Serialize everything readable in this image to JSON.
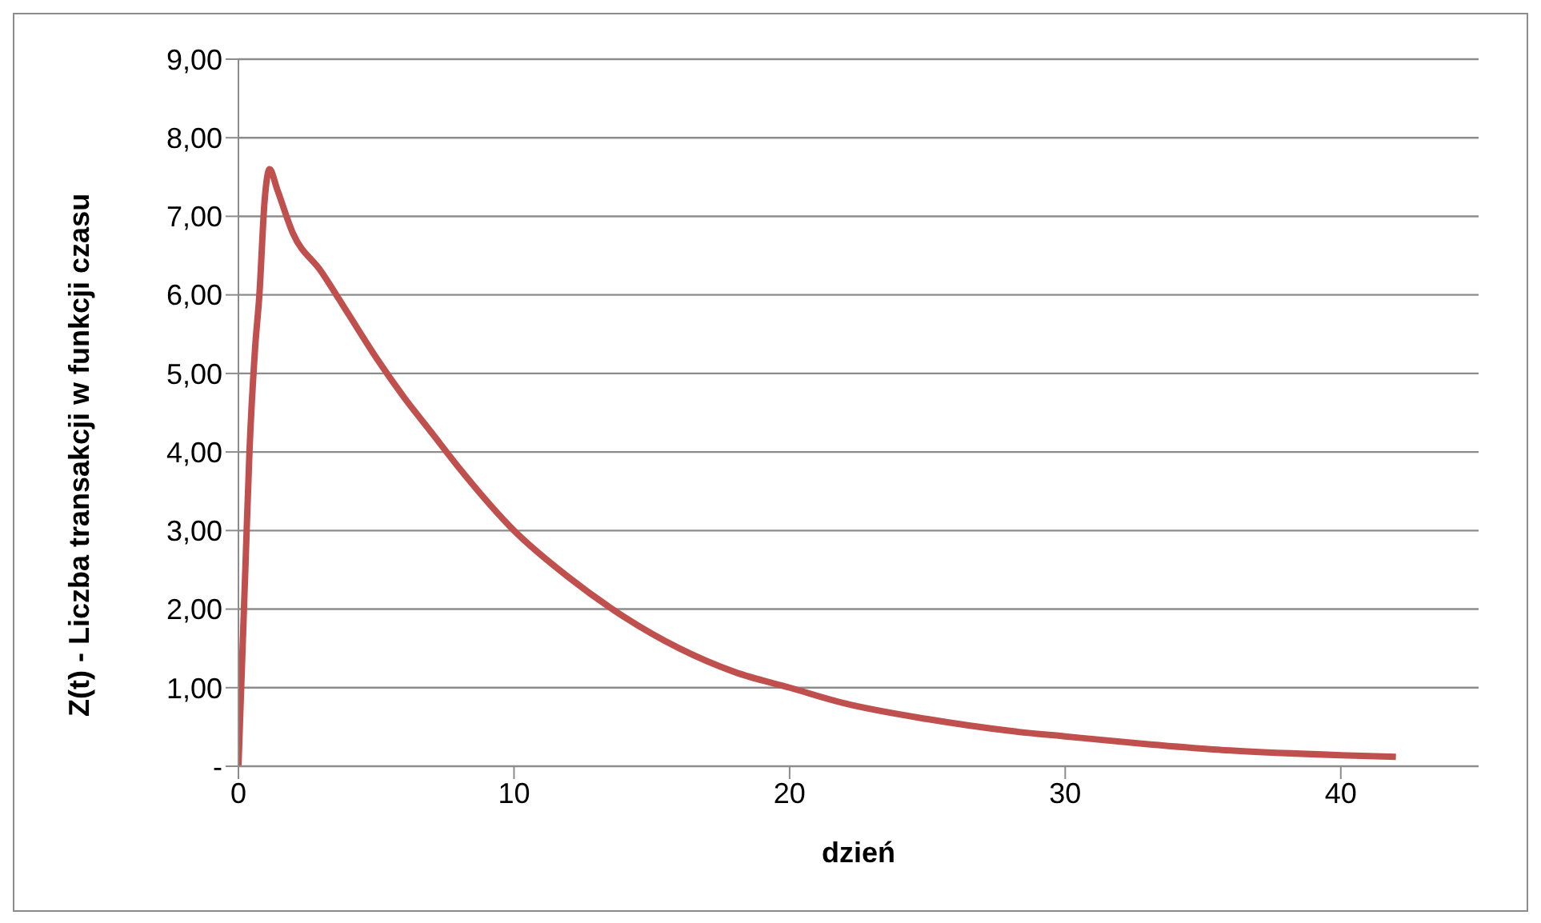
{
  "chart_data": {
    "type": "line",
    "xlabel": "dzień",
    "ylabel": "Z(t) - Liczba transakcji  w funkcji czasu",
    "xlim": [
      0,
      45
    ],
    "xticks": [
      0,
      10,
      20,
      30,
      40
    ],
    "ylim": [
      0,
      9
    ],
    "yticks": [
      {
        "value": 0,
        "label": "-"
      },
      {
        "value": 1,
        "label": "1,00"
      },
      {
        "value": 2,
        "label": "2,00"
      },
      {
        "value": 3,
        "label": "3,00"
      },
      {
        "value": 4,
        "label": "4,00"
      },
      {
        "value": 5,
        "label": "5,00"
      },
      {
        "value": 6,
        "label": "6,00"
      },
      {
        "value": 7,
        "label": "7,00"
      },
      {
        "value": 8,
        "label": "8,00"
      },
      {
        "value": 9,
        "label": "9,00"
      }
    ],
    "grid": "y",
    "legend": false,
    "marker": "none",
    "line_style": "solid",
    "series": [
      {
        "color": "#c0504d",
        "x": [
          0,
          0.1,
          0.25,
          0.4,
          0.6,
          0.76,
          0.95,
          1.13,
          1.4,
          1.97,
          3,
          4,
          5,
          6,
          7,
          8,
          10,
          12,
          14,
          16,
          18,
          20,
          22,
          25,
          28,
          30,
          33,
          36,
          40,
          42
        ],
        "values": [
          0,
          1,
          2.5,
          4,
          5.3,
          6,
          7.2,
          7.6,
          7.35,
          6.79,
          6.3,
          5.75,
          5.2,
          4.7,
          4.25,
          3.8,
          3.0,
          2.4,
          1.9,
          1.5,
          1.2,
          1.0,
          0.8,
          0.6,
          0.45,
          0.38,
          0.28,
          0.2,
          0.14,
          0.12
        ]
      }
    ]
  }
}
